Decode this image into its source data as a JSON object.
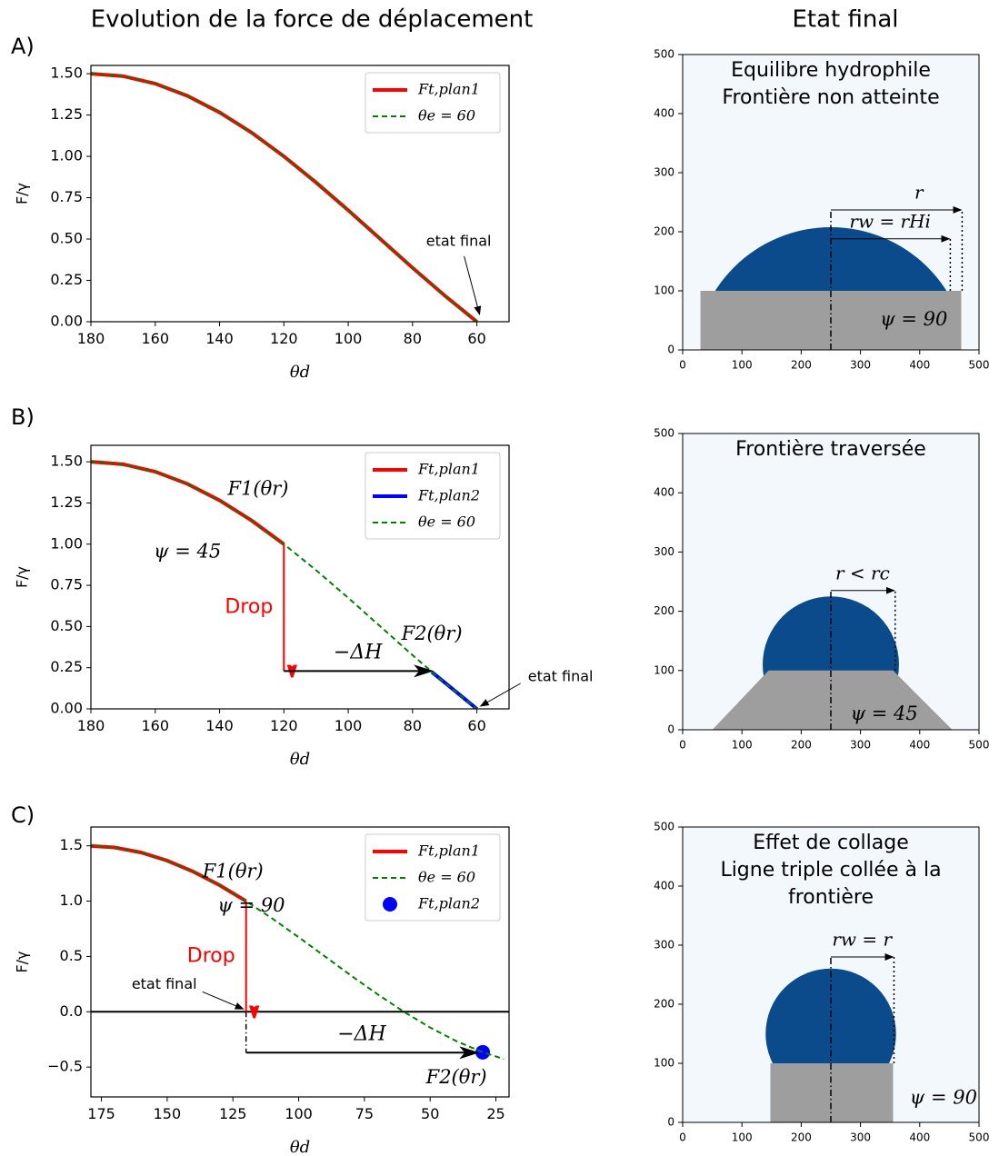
{
  "headings": [
    "Evolution de la force de déplacement",
    "Etat final"
  ],
  "panel_labels": [
    "A)",
    "B)",
    "C)"
  ],
  "chart_data": [
    {
      "type": "line",
      "xlabel": "θd",
      "ylabel": "F/γ",
      "xlim": [
        180,
        50
      ],
      "ylim": [
        0,
        1.55
      ],
      "xticks": [
        180,
        160,
        140,
        120,
        100,
        80,
        60
      ],
      "yticks": [
        {
          "value": 0,
          "label": "0.00"
        },
        {
          "value": 0.25,
          "label": "0.25"
        },
        {
          "value": 0.5,
          "label": "0.50"
        },
        {
          "value": 0.75,
          "label": "0.75"
        },
        {
          "value": 1,
          "label": "1.00"
        },
        {
          "value": 1.25,
          "label": "1.25"
        },
        {
          "value": 1.5,
          "label": "1.50"
        }
      ],
      "legend": "upper right",
      "series": [
        {
          "name": "Ft,plan1",
          "color": "#ff0000",
          "style": "solid",
          "x": [
            180,
            170,
            160,
            150,
            140,
            130,
            120,
            110,
            100,
            90,
            80,
            70,
            60
          ],
          "values": [
            1.5,
            1.485,
            1.44,
            1.366,
            1.266,
            1.143,
            1.0,
            0.842,
            0.674,
            0.5,
            0.326,
            0.158,
            0
          ]
        },
        {
          "name": "θe = 60",
          "color": "#008000",
          "style": "dashed",
          "x": [
            180,
            170,
            160,
            150,
            140,
            130,
            120,
            110,
            100,
            90,
            80,
            70,
            60
          ],
          "values": [
            1.5,
            1.485,
            1.44,
            1.366,
            1.266,
            1.143,
            1.0,
            0.842,
            0.674,
            0.5,
            0.326,
            0.158,
            0
          ]
        }
      ],
      "annotations": [
        {
          "text": "etat final",
          "x": 60,
          "y": 0
        }
      ]
    },
    {
      "type": "image",
      "title": [
        "Equilibre hydrophile",
        "Frontière non atteinte"
      ],
      "xlim": [
        0,
        500
      ],
      "ylim": [
        0,
        500
      ],
      "xticks": [
        0,
        100,
        200,
        300,
        400,
        500
      ],
      "yticks": [
        0,
        100,
        200,
        300,
        400,
        500
      ],
      "substrate": {
        "x": [
          30,
          30,
          470,
          470
        ],
        "y": [
          0,
          100,
          100,
          0
        ]
      },
      "drop": {
        "cx": 250,
        "cy": -24,
        "r": 231,
        "base": 100
      },
      "axis_line": {
        "x": 250,
        "y": [
          0,
          237
        ]
      },
      "arrows": [
        {
          "label": "r",
          "x": [
            250,
            470
          ],
          "y": [
            237,
            237
          ]
        },
        {
          "label": "rw = rHi",
          "x": [
            250,
            450
          ],
          "y": [
            188,
            188
          ]
        }
      ],
      "labels": [
        "ψ = 90"
      ]
    },
    {
      "type": "line",
      "xlabel": "θd",
      "ylabel": "F/γ",
      "xlim": [
        180,
        50
      ],
      "ylim": [
        0,
        1.6
      ],
      "xticks": [
        180,
        160,
        140,
        120,
        100,
        80,
        60
      ],
      "yticks": [
        {
          "value": 0,
          "label": "0.00"
        },
        {
          "value": 0.25,
          "label": "0.25"
        },
        {
          "value": 0.5,
          "label": "0.50"
        },
        {
          "value": 0.75,
          "label": "0.75"
        },
        {
          "value": 1,
          "label": "1.00"
        },
        {
          "value": 1.25,
          "label": "1.25"
        },
        {
          "value": 1.5,
          "label": "1.50"
        }
      ],
      "legend": "upper right",
      "series": [
        {
          "name": "Ft,plan1",
          "color": "#ff0000",
          "style": "solid",
          "x": [
            180,
            170,
            160,
            150,
            140,
            130,
            120
          ],
          "values": [
            1.5,
            1.485,
            1.44,
            1.366,
            1.266,
            1.143,
            1.0
          ]
        },
        {
          "name": "Ft,plan2",
          "color": "#0000ff",
          "style": "solid",
          "x": [
            74,
            60
          ],
          "values": [
            0.224,
            0
          ]
        },
        {
          "name": "θe = 60",
          "color": "#008000",
          "style": "dashed",
          "x": [
            180,
            170,
            160,
            150,
            140,
            130,
            120,
            110,
            100,
            90,
            80,
            70,
            60
          ],
          "values": [
            1.5,
            1.485,
            1.44,
            1.366,
            1.266,
            1.143,
            1.0,
            0.842,
            0.674,
            0.5,
            0.326,
            0.158,
            0
          ]
        }
      ],
      "arrows": [
        {
          "label": "Drop",
          "color": "#ff0000",
          "x": [
            120,
            120
          ],
          "values": [
            1.0,
            0.23
          ]
        },
        {
          "label": "−ΔH",
          "color": "#000000",
          "x": [
            120,
            74
          ],
          "values": [
            0.23,
            0.23
          ]
        }
      ],
      "labels": [
        "F1(θr)",
        "ψ = 45",
        "F2(θr)"
      ],
      "annotations": [
        {
          "text": "etat final",
          "x": 60,
          "y": 0
        }
      ]
    },
    {
      "type": "image",
      "title": [
        "Frontière traversée"
      ],
      "xlim": [
        0,
        500
      ],
      "ylim": [
        0,
        500
      ],
      "xticks": [
        0,
        100,
        200,
        300,
        400,
        500
      ],
      "yticks": [
        0,
        100,
        200,
        300,
        400,
        500
      ],
      "substrate": {
        "x": [
          50,
          145,
          355,
          455
        ],
        "y": [
          0,
          100,
          100,
          0
        ]
      },
      "drop": {
        "cx": 250,
        "cy": 110,
        "r": 115,
        "base": 70
      },
      "axis_line": {
        "x": 250,
        "y": [
          0,
          235
        ]
      },
      "arrows": [
        {
          "label": "r < rc",
          "x": [
            250,
            357
          ],
          "y": [
            235,
            235
          ]
        }
      ],
      "labels": [
        "ψ = 45"
      ]
    },
    {
      "type": "line",
      "xlabel": "θd",
      "ylabel": "F/γ",
      "xlim": [
        179,
        20
      ],
      "ylim": [
        -0.77,
        1.67
      ],
      "xticks": [
        175,
        150,
        125,
        100,
        75,
        50,
        25
      ],
      "yticks": [
        {
          "value": -0.5,
          "label": "−0.5"
        },
        {
          "value": 0,
          "label": "0.0"
        },
        0.5,
        {
          "value": 1,
          "label": "1.0"
        },
        1.5
      ],
      "legend": "upper right",
      "hline": 0,
      "series": [
        {
          "name": "Ft,plan1",
          "color": "#ff0000",
          "style": "solid",
          "x": [
            180,
            170,
            160,
            150,
            140,
            130,
            120
          ],
          "values": [
            1.5,
            1.485,
            1.44,
            1.366,
            1.266,
            1.143,
            1.0
          ]
        },
        {
          "name": "θe = 60",
          "color": "#008000",
          "style": "dashed",
          "x": [
            180,
            170,
            160,
            150,
            140,
            130,
            120,
            110,
            100,
            90,
            80,
            70,
            60,
            50,
            40,
            30,
            22
          ],
          "values": [
            1.5,
            1.485,
            1.44,
            1.366,
            1.266,
            1.143,
            1.0,
            0.842,
            0.674,
            0.5,
            0.326,
            0.158,
            0,
            -0.143,
            -0.266,
            -0.366,
            -0.427
          ]
        },
        {
          "name": "Ft,plan2",
          "color": "#0000ff",
          "style": "marker",
          "x": [
            30
          ],
          "values": [
            -0.366
          ]
        }
      ],
      "arrows": [
        {
          "label": "Drop",
          "color": "#ff0000",
          "x": [
            120,
            120
          ],
          "values": [
            1.0,
            0
          ]
        },
        {
          "label": "−ΔH",
          "color": "#000000",
          "x": [
            120,
            32
          ],
          "values": [
            -0.37,
            -0.37
          ]
        }
      ],
      "guides": [
        {
          "x": [
            120,
            120
          ],
          "values": [
            0,
            -0.37
          ]
        }
      ],
      "labels": [
        "F1(θr)",
        "ψ = 90",
        "F2(θr)"
      ],
      "annotations": [
        {
          "text": "etat final",
          "x": 120,
          "y": 0
        }
      ]
    },
    {
      "type": "image",
      "title": [
        "Effet de collage",
        "Ligne triple collée à la",
        "frontière"
      ],
      "xlim": [
        0,
        500
      ],
      "ylim": [
        0,
        500
      ],
      "xticks": [
        0,
        100,
        200,
        300,
        400,
        500
      ],
      "yticks": [
        0,
        100,
        200,
        300,
        400,
        500
      ],
      "substrate": {
        "x": [
          148,
          148,
          355,
          355
        ],
        "y": [
          0,
          100,
          100,
          0
        ]
      },
      "drop": {
        "cx": 250,
        "cy": 150,
        "r": 110,
        "base": 100
      },
      "axis_line": {
        "x": 250,
        "y": [
          0,
          280
        ]
      },
      "arrows": [
        {
          "label": "rw = r",
          "x": [
            250,
            355
          ],
          "y": [
            280,
            280
          ]
        }
      ],
      "labels": [
        "ψ = 90"
      ]
    }
  ]
}
